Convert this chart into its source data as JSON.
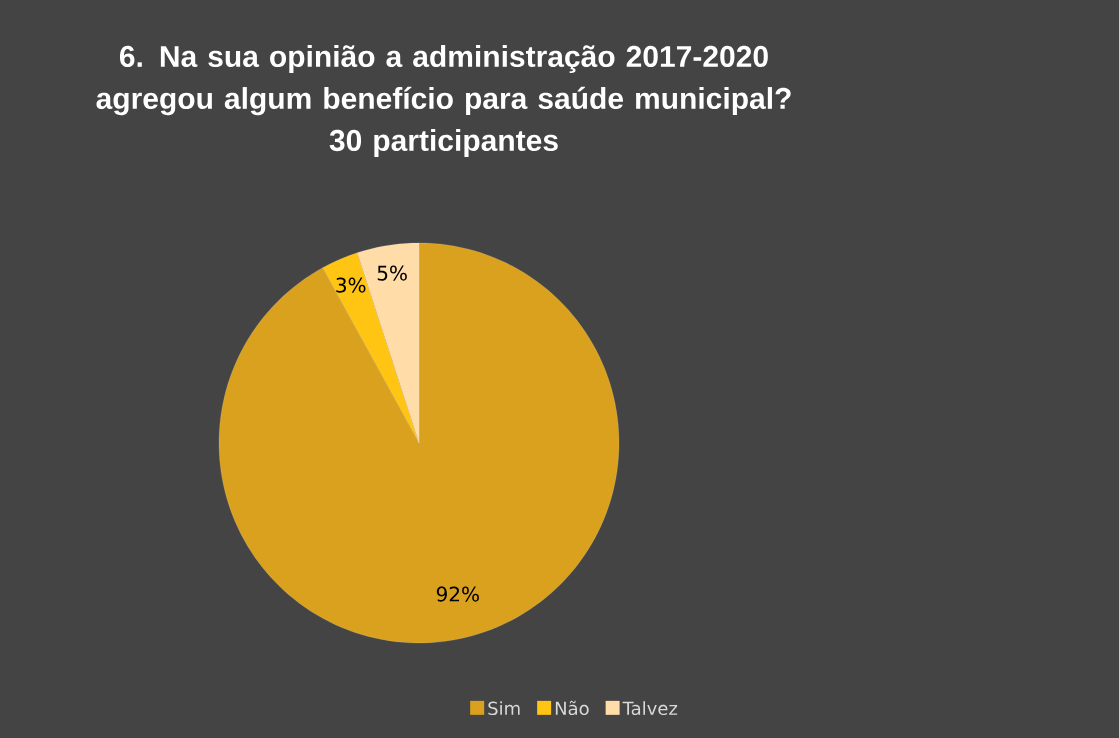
{
  "chart_data": {
    "type": "pie",
    "title": "6. Na sua opinião a administração 2017-2020 agregou algum benefício para saúde municipal?",
    "subtitle": "30 participantes",
    "categories": [
      "Sim",
      "Não",
      "Talvez"
    ],
    "values": [
      92,
      3,
      5
    ],
    "colors": [
      "#D9A11E",
      "#FFC512",
      "#FFDCA8"
    ],
    "value_labels": [
      "92%",
      "3%",
      "5%"
    ],
    "legend": "bottom"
  }
}
